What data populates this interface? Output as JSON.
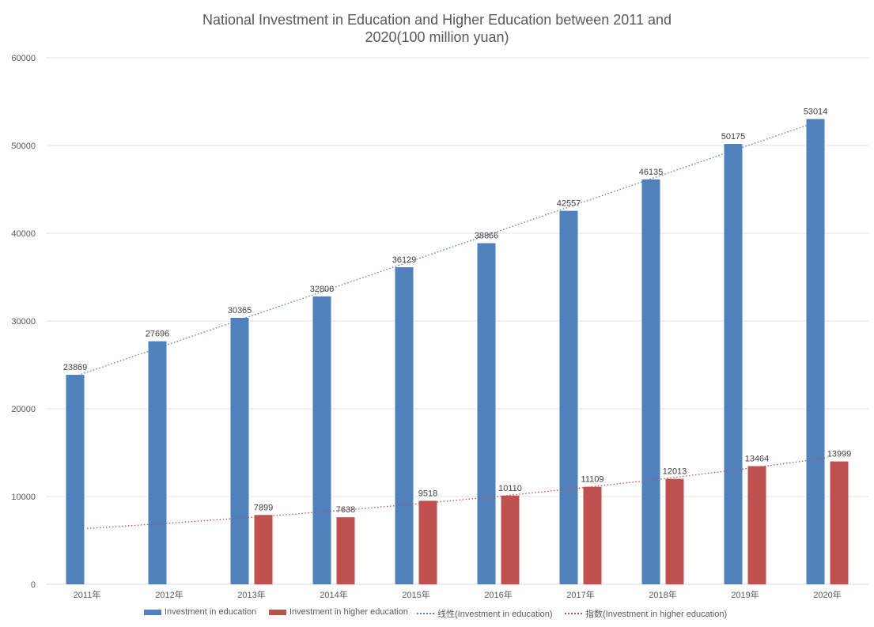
{
  "chart_data": {
    "type": "bar",
    "title": "National Investment in Education and Higher Education between 2011 and 2020(100 million yuan)",
    "title_lines": [
      "National Investment in Education and Higher Education between 2011 and",
      "2020(100 million yuan)"
    ],
    "categories": [
      "2011年",
      "2012年",
      "2013年",
      "2014年",
      "2015年",
      "2016年",
      "2017年",
      "2018年",
      "2019年",
      "2020年"
    ],
    "series": [
      {
        "name": "Investment in education",
        "color": "#4f81bd",
        "values": [
          23869,
          27696,
          30365,
          32806,
          36129,
          38866,
          42557,
          46135,
          50175,
          53014
        ]
      },
      {
        "name": "Investment in higher education",
        "color": "#c0504d",
        "values": [
          null,
          null,
          7899,
          7638,
          9518,
          10110,
          11109,
          12013,
          13464,
          13999
        ]
      }
    ],
    "trendlines": [
      {
        "name": "线性(Investment in education)",
        "type": "linear",
        "color": "#4f81bd",
        "series_index": 0
      },
      {
        "name": "指数(Investment in higher education)",
        "type": "exponential",
        "color": "#c0504d",
        "series_index": 1
      }
    ],
    "ylim": [
      0,
      60000
    ],
    "yticks": [
      "0",
      "10000",
      "20000",
      "30000",
      "40000",
      "50000",
      "60000"
    ],
    "xlabel": "",
    "ylabel": "",
    "grid": true,
    "legend_position": "bottom"
  }
}
